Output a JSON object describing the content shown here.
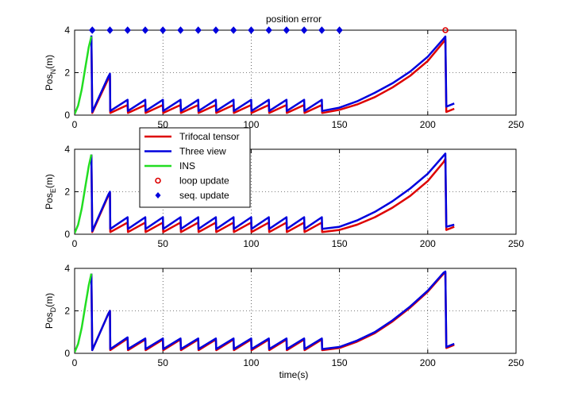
{
  "chart_data": {
    "type": "line",
    "title": "position error",
    "xlabel": "time(s)",
    "xlim": [
      0,
      250
    ],
    "ylim": [
      0,
      4
    ],
    "x_ticks": [
      0,
      50,
      100,
      150,
      200,
      250
    ],
    "x_tick_labels": [
      "0",
      "50",
      "100",
      "150",
      "200",
      "250"
    ],
    "y_ticks": [
      0,
      2,
      4
    ],
    "y_tick_labels": [
      "0",
      "2",
      "4"
    ],
    "grid": true,
    "legend": {
      "location": "between top and middle panels, left",
      "entries": [
        {
          "label": "Trifocal tensor",
          "color": "#dd0000",
          "marker": "line"
        },
        {
          "label": "Three view",
          "color": "#0000dd",
          "marker": "line"
        },
        {
          "label": "INS",
          "color": "#22dd22",
          "marker": "line"
        },
        {
          "label": "loop update",
          "color": "#dd0000",
          "marker": "circle"
        },
        {
          "label": "seq. update",
          "color": "#0000dd",
          "marker": "diamond"
        }
      ]
    },
    "seq_update_times": [
      10,
      20,
      30,
      40,
      50,
      60,
      70,
      80,
      90,
      100,
      110,
      120,
      130,
      140,
      150
    ],
    "loop_update_times": [
      210
    ],
    "panels": [
      {
        "name": "north",
        "ylabel_main": "Pos",
        "ylabel_sub": "N",
        "ylabel_unit": "(m)",
        "show_update_markers": true,
        "series": [
          {
            "name": "INS",
            "color": "#22dd22",
            "x": [
              0,
              2,
              4,
              6,
              8,
              9.5
            ],
            "y": [
              0.05,
              0.45,
              1.2,
              2.2,
              3.2,
              3.7
            ]
          },
          {
            "name": "Trifocal tensor",
            "color": "#dd0000",
            "x": [
              9.5,
              10,
              19,
              20,
              20.2,
              30,
              30.2,
              40,
              40.2,
              50,
              50.2,
              60,
              60.2,
              70,
              70.2,
              80,
              80.2,
              90,
              90.2,
              100,
              100.2,
              110,
              110.2,
              120,
              120.2,
              130,
              130.2,
              140,
              140.2,
              150,
              160,
              170,
              180,
              190,
              200,
              209,
              210,
              210.5,
              215
            ],
            "y": [
              3.7,
              0.1,
              1.7,
              1.85,
              0.1,
              0.48,
              0.1,
              0.48,
              0.1,
              0.48,
              0.1,
              0.48,
              0.1,
              0.48,
              0.1,
              0.48,
              0.1,
              0.48,
              0.1,
              0.48,
              0.1,
              0.48,
              0.1,
              0.48,
              0.1,
              0.48,
              0.1,
              0.48,
              0.1,
              0.25,
              0.5,
              0.85,
              1.3,
              1.85,
              2.55,
              3.45,
              3.55,
              0.15,
              0.3
            ]
          },
          {
            "name": "Three view",
            "color": "#0000dd",
            "x": [
              9.5,
              10,
              19,
              20,
              20.2,
              30,
              30.2,
              40,
              40.2,
              50,
              50.2,
              60,
              60.2,
              70,
              70.2,
              80,
              80.2,
              90,
              90.2,
              100,
              100.2,
              110,
              110.2,
              120,
              120.2,
              130,
              130.2,
              140,
              140.2,
              150,
              160,
              170,
              180,
              190,
              200,
              209,
              210,
              210.5,
              215
            ],
            "y": [
              3.75,
              0.15,
              1.8,
              1.95,
              0.2,
              0.72,
              0.2,
              0.72,
              0.2,
              0.72,
              0.2,
              0.72,
              0.2,
              0.72,
              0.2,
              0.72,
              0.2,
              0.72,
              0.2,
              0.72,
              0.2,
              0.72,
              0.2,
              0.72,
              0.2,
              0.72,
              0.2,
              0.72,
              0.2,
              0.35,
              0.65,
              1.05,
              1.5,
              2.05,
              2.75,
              3.6,
              3.7,
              0.4,
              0.55
            ]
          }
        ]
      },
      {
        "name": "east",
        "ylabel_main": "Pos",
        "ylabel_sub": "E",
        "ylabel_unit": "(m)",
        "show_update_markers": false,
        "series": [
          {
            "name": "INS",
            "color": "#22dd22",
            "x": [
              0,
              2,
              4,
              6,
              8,
              9.5
            ],
            "y": [
              0.05,
              0.45,
              1.2,
              2.2,
              3.2,
              3.75
            ]
          },
          {
            "name": "Trifocal tensor",
            "color": "#dd0000",
            "x": [
              9.5,
              10,
              19,
              20,
              20.2,
              30,
              30.2,
              40,
              40.2,
              50,
              50.2,
              60,
              60.2,
              70,
              70.2,
              80,
              80.2,
              90,
              90.2,
              100,
              100.2,
              110,
              110.2,
              120,
              120.2,
              130,
              130.2,
              140,
              140.2,
              150,
              160,
              170,
              180,
              190,
              200,
              209,
              210,
              210.5,
              215
            ],
            "y": [
              3.75,
              0.1,
              1.8,
              1.95,
              0.1,
              0.55,
              0.1,
              0.55,
              0.1,
              0.55,
              0.1,
              0.55,
              0.1,
              0.55,
              0.1,
              0.55,
              0.1,
              0.55,
              0.1,
              0.55,
              0.1,
              0.55,
              0.1,
              0.55,
              0.1,
              0.55,
              0.1,
              0.55,
              0.1,
              0.2,
              0.45,
              0.8,
              1.25,
              1.8,
              2.5,
              3.4,
              3.55,
              0.2,
              0.35
            ]
          },
          {
            "name": "Three view",
            "color": "#0000dd",
            "x": [
              9.5,
              10,
              19,
              20,
              20.2,
              30,
              30.2,
              40,
              40.2,
              50,
              50.2,
              60,
              60.2,
              70,
              70.2,
              80,
              80.2,
              90,
              90.2,
              100,
              100.2,
              110,
              110.2,
              120,
              120.2,
              130,
              130.2,
              140,
              140.2,
              150,
              160,
              170,
              180,
              190,
              200,
              209,
              210,
              210.5,
              215
            ],
            "y": [
              3.75,
              0.15,
              1.85,
              2.0,
              0.25,
              0.8,
              0.25,
              0.8,
              0.25,
              0.8,
              0.25,
              0.8,
              0.25,
              0.8,
              0.25,
              0.8,
              0.25,
              0.8,
              0.25,
              0.8,
              0.25,
              0.8,
              0.25,
              0.8,
              0.25,
              0.8,
              0.25,
              0.8,
              0.25,
              0.35,
              0.65,
              1.05,
              1.55,
              2.15,
              2.85,
              3.7,
              3.8,
              0.35,
              0.45
            ]
          }
        ]
      },
      {
        "name": "down",
        "ylabel_main": "Pos",
        "ylabel_sub": "D",
        "ylabel_unit": "(m)",
        "show_update_markers": false,
        "series": [
          {
            "name": "INS",
            "color": "#22dd22",
            "x": [
              0,
              2,
              4,
              6,
              8,
              9.5
            ],
            "y": [
              0.05,
              0.45,
              1.2,
              2.2,
              3.2,
              3.75
            ]
          },
          {
            "name": "Trifocal tensor",
            "color": "#dd0000",
            "x": [
              9.5,
              10,
              19,
              20,
              20.2,
              30,
              30.2,
              40,
              40.2,
              50,
              50.2,
              60,
              60.2,
              70,
              70.2,
              80,
              80.2,
              90,
              90.2,
              100,
              100.2,
              110,
              110.2,
              120,
              120.2,
              130,
              130.2,
              140,
              140.2,
              150,
              160,
              170,
              180,
              190,
              200,
              209,
              210,
              210.5,
              215
            ],
            "y": [
              3.75,
              0.15,
              1.85,
              2.0,
              0.15,
              0.7,
              0.15,
              0.65,
              0.15,
              0.65,
              0.15,
              0.65,
              0.15,
              0.65,
              0.15,
              0.65,
              0.15,
              0.65,
              0.15,
              0.65,
              0.15,
              0.65,
              0.15,
              0.65,
              0.15,
              0.65,
              0.15,
              0.65,
              0.15,
              0.25,
              0.55,
              0.95,
              1.5,
              2.15,
              2.9,
              3.75,
              3.8,
              0.25,
              0.4
            ]
          },
          {
            "name": "Three view",
            "color": "#0000dd",
            "x": [
              9.5,
              10,
              19,
              20,
              20.2,
              30,
              30.2,
              40,
              40.2,
              50,
              50.2,
              60,
              60.2,
              70,
              70.2,
              80,
              80.2,
              90,
              90.2,
              100,
              100.2,
              110,
              110.2,
              120,
              120.2,
              130,
              130.2,
              140,
              140.2,
              150,
              160,
              170,
              180,
              190,
              200,
              209,
              210,
              210.5,
              215
            ],
            "y": [
              3.75,
              0.15,
              1.85,
              2.0,
              0.2,
              0.75,
              0.2,
              0.7,
              0.2,
              0.7,
              0.2,
              0.7,
              0.2,
              0.7,
              0.2,
              0.7,
              0.2,
              0.7,
              0.2,
              0.7,
              0.2,
              0.7,
              0.2,
              0.7,
              0.2,
              0.7,
              0.2,
              0.7,
              0.2,
              0.3,
              0.6,
              1.0,
              1.55,
              2.2,
              2.95,
              3.8,
              3.85,
              0.3,
              0.45
            ]
          }
        ]
      }
    ]
  }
}
